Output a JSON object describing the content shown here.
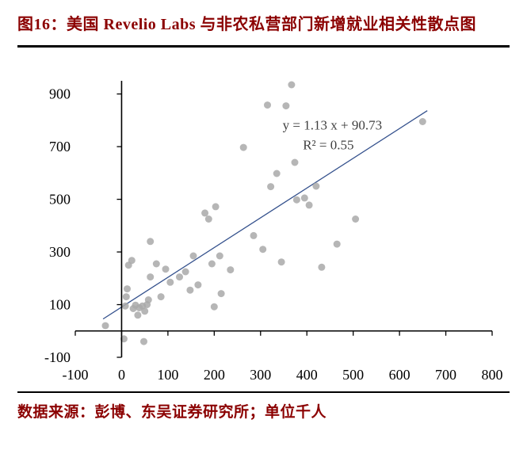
{
  "header": {
    "title": "图16：美国 Revelio Labs 与非农私营部门新增就业相关性散点图"
  },
  "footer": {
    "source": "数据来源：彭博、东吴证券研究所；单位千人"
  },
  "colors": {
    "title_red": "#8B0000",
    "point_gray": "#A9A9A9",
    "trend_blue": "#33508C",
    "axis_black": "#000000",
    "annotation_gray": "#3F3F3F"
  },
  "chart_data": {
    "type": "scatter",
    "title": "",
    "xlabel": "",
    "ylabel": "",
    "xlim": [
      -100,
      800
    ],
    "ylim": [
      -100,
      950
    ],
    "x_ticks": [
      -100,
      0,
      100,
      200,
      300,
      400,
      500,
      600,
      700,
      800
    ],
    "y_ticks": [
      -100,
      100,
      300,
      500,
      700,
      900
    ],
    "grid": false,
    "legend": false,
    "points": [
      [
        -35,
        20
      ],
      [
        5,
        -30
      ],
      [
        8,
        95
      ],
      [
        10,
        130
      ],
      [
        12,
        160
      ],
      [
        15,
        250
      ],
      [
        22,
        268
      ],
      [
        25,
        85
      ],
      [
        30,
        98
      ],
      [
        35,
        60
      ],
      [
        38,
        88
      ],
      [
        45,
        95
      ],
      [
        48,
        -40
      ],
      [
        50,
        75
      ],
      [
        55,
        100
      ],
      [
        58,
        118
      ],
      [
        62,
        205
      ],
      [
        62,
        340
      ],
      [
        75,
        255
      ],
      [
        85,
        130
      ],
      [
        95,
        235
      ],
      [
        105,
        185
      ],
      [
        125,
        205
      ],
      [
        138,
        225
      ],
      [
        148,
        155
      ],
      [
        155,
        285
      ],
      [
        165,
        175
      ],
      [
        180,
        448
      ],
      [
        188,
        425
      ],
      [
        195,
        255
      ],
      [
        200,
        92
      ],
      [
        203,
        472
      ],
      [
        212,
        285
      ],
      [
        215,
        142
      ],
      [
        235,
        232
      ],
      [
        263,
        697
      ],
      [
        285,
        362
      ],
      [
        305,
        310
      ],
      [
        315,
        858
      ],
      [
        322,
        548
      ],
      [
        335,
        598
      ],
      [
        345,
        262
      ],
      [
        355,
        855
      ],
      [
        367,
        935
      ],
      [
        374,
        640
      ],
      [
        378,
        498
      ],
      [
        395,
        505
      ],
      [
        405,
        478
      ],
      [
        420,
        550
      ],
      [
        432,
        242
      ],
      [
        465,
        330
      ],
      [
        505,
        425
      ],
      [
        650,
        795
      ]
    ],
    "trendline": {
      "slope": 1.13,
      "intercept": 90.73,
      "x_start": -40,
      "x_end": 660,
      "equation_label": "y = 1.13 x + 90.73",
      "r_squared_label": "R² = 0.55",
      "label_pos": [
        455,
        765
      ]
    }
  }
}
